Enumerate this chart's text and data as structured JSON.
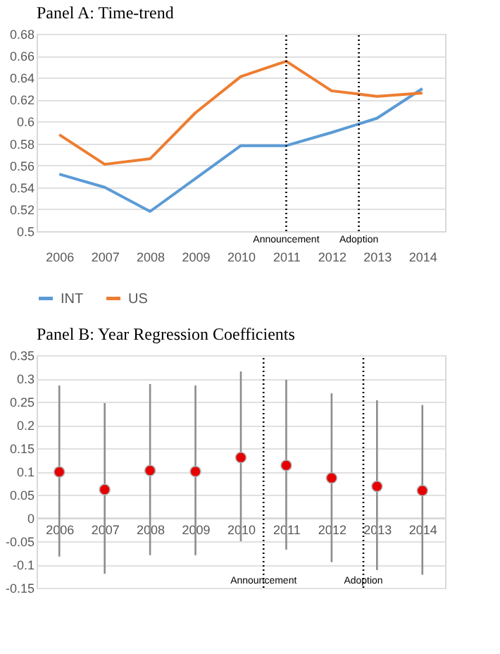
{
  "chart_data": [
    {
      "type": "line",
      "title": "Panel A: Time-trend",
      "x": [
        2006,
        2007,
        2008,
        2009,
        2010,
        2011,
        2012,
        2013,
        2014
      ],
      "xlim": [
        2005.5,
        2014.5
      ],
      "xticks": [
        2006,
        2007,
        2008,
        2009,
        2010,
        2011,
        2012,
        2013,
        2014
      ],
      "ylim": [
        0.5,
        0.68
      ],
      "yticks": [
        0.5,
        0.52,
        0.54,
        0.56,
        0.58,
        0.6,
        0.62,
        0.64,
        0.66,
        0.68
      ],
      "grid": "y",
      "legend": "bottom",
      "marker": "none",
      "line_style": "solid",
      "series": [
        {
          "name": "INT",
          "color": "#5b9bd5",
          "values": [
            0.552,
            0.54,
            0.518,
            0.548,
            0.578,
            0.578,
            0.59,
            0.603,
            0.63
          ]
        },
        {
          "name": "US",
          "color": "#ed7d31",
          "values": [
            0.588,
            0.561,
            0.566,
            0.608,
            0.641,
            0.655,
            0.628,
            0.623,
            0.626
          ]
        }
      ],
      "ref_lines": [
        {
          "axis": "x",
          "value": 2011,
          "label": "Announcement",
          "line_style": "dotted",
          "color": "#000000"
        },
        {
          "axis": "x",
          "value": 2012.6,
          "label": "Adoption",
          "line_style": "dotted",
          "color": "#000000"
        }
      ]
    },
    {
      "type": "scatter",
      "title": "Panel B: Year Regression Coefficients",
      "x": [
        2006,
        2007,
        2008,
        2009,
        2010,
        2011,
        2012,
        2013,
        2014
      ],
      "xlim": [
        2005.5,
        2014.5
      ],
      "xticks": [
        2006,
        2007,
        2008,
        2009,
        2010,
        2011,
        2012,
        2013,
        2014
      ],
      "ylim": [
        -0.15,
        0.35
      ],
      "yticks": [
        -0.15,
        -0.1,
        -0.05,
        0,
        0.05,
        0.1,
        0.15,
        0.2,
        0.25,
        0.3,
        0.35
      ],
      "grid": "y",
      "marker": "circle",
      "color": "#e60000",
      "values": [
        0.099,
        0.061,
        0.102,
        0.1,
        0.13,
        0.113,
        0.086,
        0.068,
        0.059
      ],
      "errors": [
        [
          -0.083,
          0.285
        ],
        [
          -0.12,
          0.247
        ],
        [
          -0.08,
          0.288
        ],
        [
          -0.08,
          0.285
        ],
        [
          -0.05,
          0.315
        ],
        [
          -0.068,
          0.297
        ],
        [
          -0.095,
          0.268
        ],
        [
          -0.112,
          0.253
        ],
        [
          -0.122,
          0.243
        ]
      ],
      "ref_lines": [
        {
          "axis": "x",
          "value": 2010.5,
          "label": "Announcement",
          "line_style": "dotted",
          "color": "#000000"
        },
        {
          "axis": "x",
          "value": 2012.7,
          "label": "Adoption",
          "line_style": "dotted",
          "color": "#000000"
        }
      ]
    }
  ]
}
